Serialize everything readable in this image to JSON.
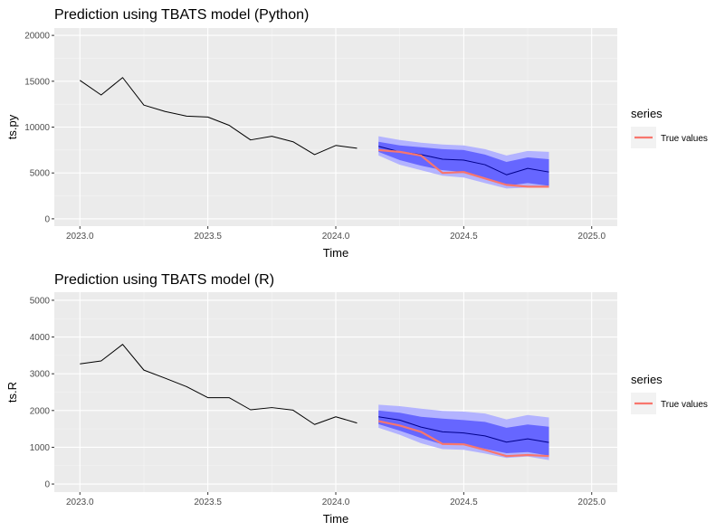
{
  "chart_data": [
    {
      "type": "line",
      "title": "Prediction using TBATS model (Python)",
      "xlabel": "Time",
      "ylabel": "ts.py",
      "xlim": [
        2022.9,
        2025.1
      ],
      "ylim": [
        -800,
        20800
      ],
      "xticks": [
        2023.0,
        2023.5,
        2024.0,
        2024.5,
        2025.0
      ],
      "xtick_labels": [
        "2023.0",
        "2023.5",
        "2024.0",
        "2024.5",
        "2025.0"
      ],
      "yticks": [
        0,
        5000,
        10000,
        15000,
        20000
      ],
      "ytick_labels": [
        "0",
        "5000",
        "10000",
        "15000",
        "20000"
      ],
      "grid": true,
      "legend": {
        "title": "series",
        "position": "right",
        "entries": [
          {
            "label": "True values",
            "color": "#f8766d"
          }
        ]
      },
      "colors": {
        "history": "#000000",
        "forecast": "#00008b",
        "band80": "#6666ff",
        "band95": "#b3b3ff",
        "true": "#f8766d",
        "panel": "#ebebeb"
      },
      "history": {
        "x": [
          2023.0,
          2023.083,
          2023.167,
          2023.25,
          2023.333,
          2023.417,
          2023.5,
          2023.583,
          2023.667,
          2023.75,
          2023.833,
          2023.917,
          2024.0,
          2024.083
        ],
        "y": [
          15100,
          13500,
          15400,
          12400,
          11700,
          11200,
          11100,
          10200,
          8600,
          9000,
          8400,
          7000,
          8000,
          7700
        ]
      },
      "forecast": {
        "x": [
          2024.167,
          2024.25,
          2024.333,
          2024.417,
          2024.5,
          2024.583,
          2024.667,
          2024.75,
          2024.833
        ],
        "mean": [
          7900,
          7300,
          7000,
          6500,
          6400,
          5900,
          4800,
          5500,
          5100
        ],
        "lo80": [
          7300,
          6400,
          5800,
          5300,
          5100,
          4500,
          3600,
          3900,
          3600
        ],
        "hi80": [
          8400,
          8000,
          7800,
          7600,
          7500,
          7000,
          6200,
          6700,
          6500
        ],
        "lo95": [
          6900,
          5900,
          5300,
          4700,
          4500,
          3900,
          3300,
          3400,
          3400
        ],
        "hi95": [
          9000,
          8600,
          8300,
          8100,
          8000,
          7600,
          6900,
          7400,
          7300
        ]
      },
      "true_values": {
        "x": [
          2024.167,
          2024.25,
          2024.333,
          2024.417,
          2024.5,
          2024.583,
          2024.667,
          2024.75,
          2024.833
        ],
        "y": [
          7500,
          7300,
          6900,
          5000,
          5100,
          4400,
          3700,
          3500,
          3500
        ]
      }
    },
    {
      "type": "line",
      "title": "Prediction using TBATS model (R)",
      "xlabel": "Time",
      "ylabel": "ts.R",
      "xlim": [
        2022.9,
        2025.1
      ],
      "ylim": [
        -220,
        5220
      ],
      "xticks": [
        2023.0,
        2023.5,
        2024.0,
        2024.5,
        2025.0
      ],
      "xtick_labels": [
        "2023.0",
        "2023.5",
        "2024.0",
        "2024.5",
        "2025.0"
      ],
      "yticks": [
        0,
        1000,
        2000,
        3000,
        4000,
        5000
      ],
      "ytick_labels": [
        "0",
        "1000",
        "2000",
        "3000",
        "4000",
        "5000"
      ],
      "grid": true,
      "legend": {
        "title": "series",
        "position": "right",
        "entries": [
          {
            "label": "True values",
            "color": "#f8766d"
          }
        ]
      },
      "colors": {
        "history": "#000000",
        "forecast": "#00008b",
        "band80": "#6666ff",
        "band95": "#b3b3ff",
        "true": "#f8766d",
        "panel": "#ebebeb"
      },
      "history": {
        "x": [
          2023.0,
          2023.083,
          2023.167,
          2023.25,
          2023.333,
          2023.417,
          2023.5,
          2023.583,
          2023.667,
          2023.75,
          2023.833,
          2023.917,
          2024.0,
          2024.083
        ],
        "y": [
          3270,
          3350,
          3800,
          3100,
          2880,
          2650,
          2350,
          2350,
          2020,
          2080,
          2010,
          1620,
          1830,
          1660
        ]
      },
      "forecast": {
        "x": [
          2024.167,
          2024.25,
          2024.333,
          2024.417,
          2024.5,
          2024.583,
          2024.667,
          2024.75,
          2024.833
        ],
        "mean": [
          1830,
          1740,
          1550,
          1420,
          1390,
          1310,
          1140,
          1230,
          1130
        ],
        "lo80": [
          1630,
          1450,
          1250,
          1080,
          1060,
          960,
          840,
          870,
          770
        ],
        "hi80": [
          2000,
          1940,
          1830,
          1780,
          1740,
          1690,
          1530,
          1620,
          1560
        ],
        "lo95": [
          1530,
          1340,
          1110,
          950,
          930,
          830,
          710,
          750,
          650
        ],
        "hi95": [
          2160,
          2120,
          2050,
          1990,
          1970,
          1920,
          1760,
          1880,
          1810
        ]
      },
      "true_values": {
        "x": [
          2024.167,
          2024.25,
          2024.333,
          2024.417,
          2024.5,
          2024.583,
          2024.667,
          2024.75,
          2024.833
        ],
        "y": [
          1710,
          1590,
          1420,
          1090,
          1080,
          930,
          760,
          790,
          760
        ]
      }
    }
  ]
}
